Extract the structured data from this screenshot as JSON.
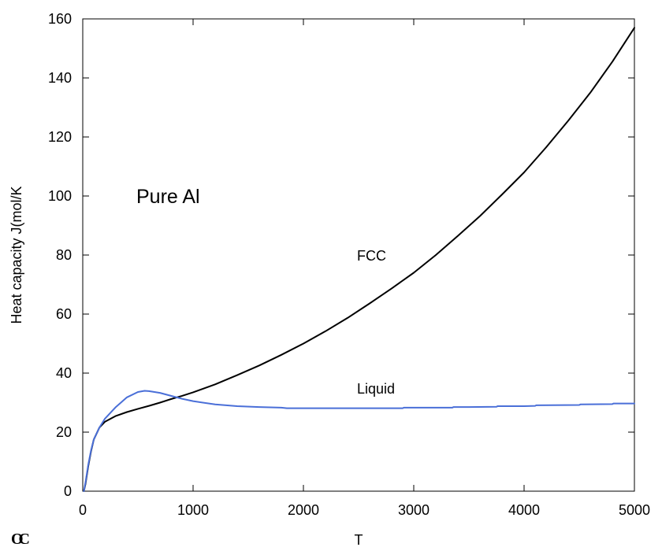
{
  "chart_data": {
    "type": "line",
    "title": "",
    "xlabel": "T",
    "ylabel": "Heat capacity J(mol/K",
    "xlim": [
      0,
      5000
    ],
    "ylim": [
      0,
      160
    ],
    "x_ticks": [
      0,
      1000,
      2000,
      3000,
      4000,
      5000
    ],
    "y_ticks": [
      0,
      20,
      40,
      60,
      80,
      100,
      120,
      140,
      160
    ],
    "grid": false,
    "legend": "none",
    "annotations": [
      {
        "text": "Pure Al",
        "x": 500,
        "y": 100
      },
      {
        "text": "FCC",
        "x": 2500,
        "y": 79
      },
      {
        "text": "Liquid",
        "x": 2500,
        "y": 34
      }
    ],
    "corner_logo": "OC",
    "series": [
      {
        "label": "FCC",
        "color": "#000000",
        "x": [
          10,
          25,
          50,
          75,
          100,
          150,
          200,
          300,
          400,
          500,
          600,
          700,
          800,
          900,
          1000,
          1200,
          1400,
          1600,
          1800,
          2000,
          2200,
          2400,
          2600,
          2800,
          3000,
          3200,
          3400,
          3600,
          3800,
          4000,
          4200,
          4400,
          4600,
          4800,
          5000
        ],
        "y": [
          0,
          2.5,
          8.5,
          13.5,
          17.5,
          21.5,
          23.5,
          25.5,
          26.8,
          27.9,
          28.9,
          30.0,
          31.2,
          32.3,
          33.5,
          36.2,
          39.3,
          42.6,
          46.2,
          50.0,
          54.2,
          58.7,
          63.6,
          68.7,
          74.0,
          80.0,
          86.5,
          93.2,
          100.5,
          108.0,
          116.5,
          125.5,
          135.0,
          145.5,
          157.0
        ]
      },
      {
        "label": "Liquid",
        "color": "#4a6fd8",
        "x": [
          10,
          25,
          50,
          75,
          100,
          150,
          200,
          300,
          400,
          500,
          560,
          600,
          700,
          800,
          900,
          1000,
          1200,
          1400,
          1600,
          1800,
          1850,
          2000,
          2500,
          2900,
          2910,
          3000,
          3350,
          3360,
          3500,
          3750,
          3760,
          4000,
          4100,
          4110,
          4500,
          4510,
          4800,
          4810,
          5000
        ],
        "y": [
          0,
          3,
          9,
          13.8,
          17.5,
          21.5,
          24.5,
          28.5,
          31.8,
          33.6,
          34.0,
          33.9,
          33.3,
          32.3,
          31.3,
          30.5,
          29.4,
          28.8,
          28.5,
          28.3,
          28.1,
          28.1,
          28.1,
          28.1,
          28.3,
          28.3,
          28.3,
          28.5,
          28.5,
          28.6,
          28.8,
          28.8,
          28.9,
          29.1,
          29.2,
          29.4,
          29.5,
          29.7,
          29.7
        ]
      }
    ]
  }
}
